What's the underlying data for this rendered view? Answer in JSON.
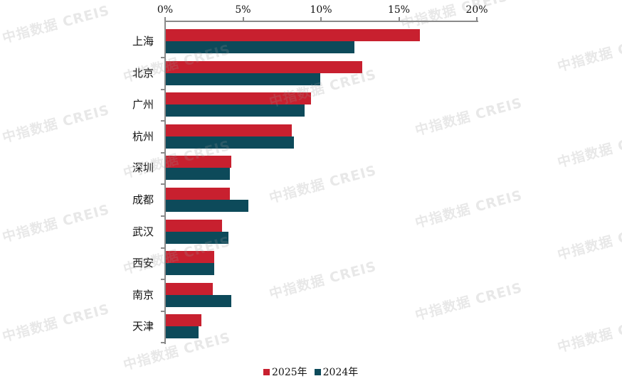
{
  "chart_data": {
    "type": "bar",
    "orientation": "horizontal",
    "title": "",
    "xlabel": "",
    "ylabel": "",
    "xlim": [
      0,
      20
    ],
    "x_ticks": [
      "0%",
      "5%",
      "10%",
      "15%",
      "20%"
    ],
    "x_tick_values": [
      0,
      5,
      10,
      15,
      20
    ],
    "x_axis_position": "top",
    "grid": false,
    "categories": [
      "上海",
      "北京",
      "广州",
      "杭州",
      "深圳",
      "成都",
      "武汉",
      "西安",
      "南京",
      "天津"
    ],
    "series": [
      {
        "name": "2025年",
        "color": "#C8202F",
        "values": [
          16.3,
          12.6,
          9.3,
          8.1,
          4.2,
          4.1,
          3.6,
          3.1,
          3.0,
          2.3
        ]
      },
      {
        "name": "2024年",
        "color": "#0D4A5A",
        "values": [
          12.1,
          9.9,
          8.9,
          8.2,
          4.1,
          5.3,
          4.0,
          3.1,
          4.2,
          2.1
        ]
      }
    ],
    "legend_position": "bottom",
    "unit": "%"
  },
  "watermark": {
    "text": "中指数据 CREIS"
  },
  "legend": {
    "items": [
      {
        "label": "2025年",
        "color": "#C8202F"
      },
      {
        "label": "2024年",
        "color": "#0D4A5A"
      }
    ]
  }
}
